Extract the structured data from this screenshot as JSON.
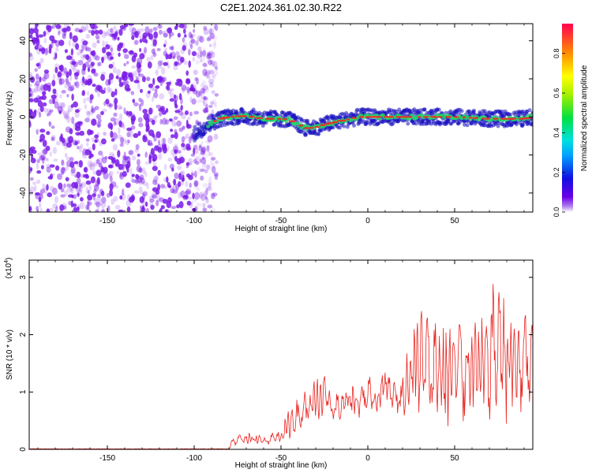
{
  "title": "C2E1.2024.361.02.30.R22",
  "colors": {
    "snr_line": "#e8241f",
    "scatter": "#7a1be8",
    "ridge_core": "#ff2020",
    "ridge_mid": "#20e060",
    "ridge_edge": "#1810c0"
  },
  "chart_data": [
    {
      "type": "heatmap",
      "xlabel": "Height of straight line (km)",
      "ylabel": "Frequency (Hz)",
      "xlim": [
        -195,
        95
      ],
      "ylim": [
        -50,
        49
      ],
      "x_ticks": [
        -150,
        -100,
        -50,
        0,
        50
      ],
      "y_ticks": [
        -40,
        -20,
        0,
        20,
        40
      ],
      "noise_region_x": [
        -195,
        -90
      ],
      "ridge": {
        "x": [
          -100,
          -95,
          -90,
          -85,
          -80,
          -70,
          -60,
          -50,
          -45,
          -40,
          -35,
          -30,
          -25,
          -20,
          -15,
          -10,
          -5,
          0,
          10,
          20,
          30,
          40,
          50,
          60,
          70,
          80,
          90,
          95
        ],
        "y": [
          -9,
          -6,
          -3,
          -1,
          0,
          0.5,
          -1,
          -1,
          -1.5,
          -4,
          -6,
          -5.5,
          -4,
          -3,
          -2,
          -1,
          0,
          0,
          0,
          0,
          0,
          0,
          0,
          -0.5,
          -1,
          -1,
          -1,
          0
        ]
      },
      "colorbar": {
        "label": "Normalized spectral amplitude",
        "range": [
          0,
          0.95
        ],
        "ticks": [
          "0.0",
          "0.2",
          "0.4",
          "0.6",
          "0.8"
        ]
      }
    },
    {
      "type": "line",
      "xlabel": "Height of straight line (km)",
      "ylabel": "SNR (10 * v/v)",
      "y_multiplier": "(x10",
      "y_multiplier_exp": "4",
      "y_multiplier_close": ")",
      "xlim": [
        -195,
        95
      ],
      "ylim": [
        0,
        3.3
      ],
      "x_ticks": [
        -150,
        -100,
        -50,
        0,
        50
      ],
      "y_ticks": [
        0,
        1,
        2,
        3
      ],
      "envelope": {
        "x": [
          -195,
          -80,
          -78,
          -70,
          -60,
          -50,
          -45,
          -40,
          -35,
          -30,
          -25,
          -20,
          -15,
          -10,
          -5,
          0,
          5,
          10,
          15,
          20,
          25,
          30,
          35,
          40,
          45,
          50,
          55,
          60,
          65,
          70,
          75,
          80,
          85,
          90,
          95
        ],
        "peak": [
          0.01,
          0.02,
          0.22,
          0.3,
          0.25,
          0.35,
          0.75,
          0.9,
          1.1,
          1.25,
          1.4,
          0.95,
          1.05,
          1.25,
          1.1,
          1.35,
          1.0,
          1.6,
          1.2,
          1.3,
          2.25,
          2.65,
          2.4,
          2.55,
          2.2,
          2.45,
          2.3,
          2.65,
          2.3,
          2.75,
          3.25,
          2.75,
          2.6,
          2.5,
          2.3
        ],
        "trough": [
          0.0,
          0.0,
          0.05,
          0.08,
          0.05,
          0.1,
          0.15,
          0.25,
          0.3,
          0.35,
          0.4,
          0.45,
          0.4,
          0.5,
          0.5,
          0.65,
          0.6,
          0.8,
          0.6,
          0.5,
          0.4,
          0.35,
          0.3,
          0.2,
          0.2,
          0.35,
          0.25,
          0.4,
          0.25,
          0.2,
          0.45,
          0.3,
          0.2,
          0.25,
          0.7
        ]
      }
    }
  ]
}
